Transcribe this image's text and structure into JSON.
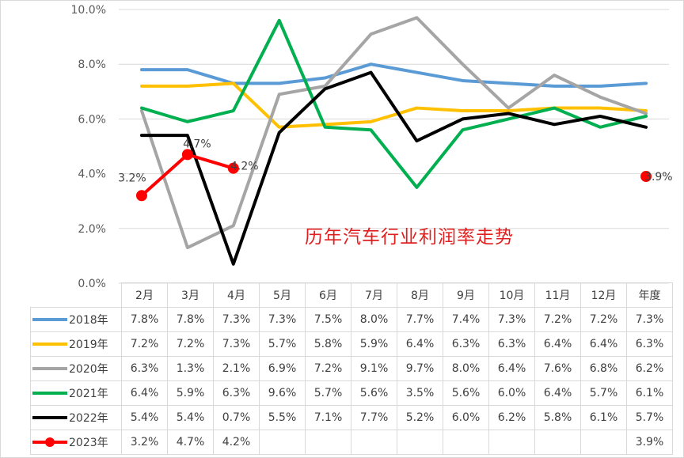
{
  "chart_data": {
    "type": "line",
    "title": "历年汽车行业利润率走势",
    "categories": [
      "2月",
      "3月",
      "4月",
      "5月",
      "6月",
      "7月",
      "8月",
      "9月",
      "10月",
      "11月",
      "12月",
      "年度"
    ],
    "ylim": [
      0,
      10
    ],
    "yticks": [
      "0.0%",
      "2.0%",
      "4.0%",
      "6.0%",
      "8.0%",
      "10.0%"
    ],
    "grid": true,
    "legend": "table-below",
    "series": [
      {
        "name": "2018年",
        "color": "#5b9bd5",
        "values": [
          7.8,
          7.8,
          7.3,
          7.3,
          7.5,
          8.0,
          7.7,
          7.4,
          7.3,
          7.2,
          7.2,
          7.3
        ],
        "labels": [
          "7.8%",
          "7.8%",
          "7.3%",
          "7.3%",
          "7.5%",
          "8.0%",
          "7.7%",
          "7.4%",
          "7.3%",
          "7.2%",
          "7.2%",
          "7.3%"
        ]
      },
      {
        "name": "2019年",
        "color": "#ffc000",
        "values": [
          7.2,
          7.2,
          7.3,
          5.7,
          5.8,
          5.9,
          6.4,
          6.3,
          6.3,
          6.4,
          6.4,
          6.3
        ],
        "labels": [
          "7.2%",
          "7.2%",
          "7.3%",
          "5.7%",
          "5.8%",
          "5.9%",
          "6.4%",
          "6.3%",
          "6.3%",
          "6.4%",
          "6.4%",
          "6.3%"
        ]
      },
      {
        "name": "2020年",
        "color": "#a5a5a5",
        "values": [
          6.3,
          1.3,
          2.1,
          6.9,
          7.2,
          9.1,
          9.7,
          8.0,
          6.4,
          7.6,
          6.8,
          6.2
        ],
        "labels": [
          "6.3%",
          "1.3%",
          "2.1%",
          "6.9%",
          "7.2%",
          "9.1%",
          "9.7%",
          "8.0%",
          "6.4%",
          "7.6%",
          "6.8%",
          "6.2%"
        ]
      },
      {
        "name": "2021年",
        "color": "#00b050",
        "values": [
          6.4,
          5.9,
          6.3,
          9.6,
          5.7,
          5.6,
          3.5,
          5.6,
          6.0,
          6.4,
          5.7,
          6.1
        ],
        "labels": [
          "6.4%",
          "5.9%",
          "6.3%",
          "9.6%",
          "5.7%",
          "5.6%",
          "3.5%",
          "5.6%",
          "6.0%",
          "6.4%",
          "5.7%",
          "6.1%"
        ]
      },
      {
        "name": "2022年",
        "color": "#000000",
        "values": [
          5.4,
          5.4,
          0.7,
          5.5,
          7.1,
          7.7,
          5.2,
          6.0,
          6.2,
          5.8,
          6.1,
          5.7
        ],
        "labels": [
          "5.4%",
          "5.4%",
          "0.7%",
          "5.5%",
          "7.1%",
          "7.7%",
          "5.2%",
          "6.0%",
          "6.2%",
          "5.8%",
          "6.1%",
          "5.7%"
        ]
      },
      {
        "name": "2023年",
        "color": "#ff0000",
        "marker": "circle",
        "values": [
          3.2,
          4.7,
          4.2,
          null,
          null,
          null,
          null,
          null,
          null,
          null,
          null,
          3.9
        ],
        "labels": [
          "3.2%",
          "4.7%",
          "4.2%",
          "",
          "",
          "",
          "",
          "",
          "",
          "",
          "",
          "3.9%"
        ]
      }
    ]
  }
}
